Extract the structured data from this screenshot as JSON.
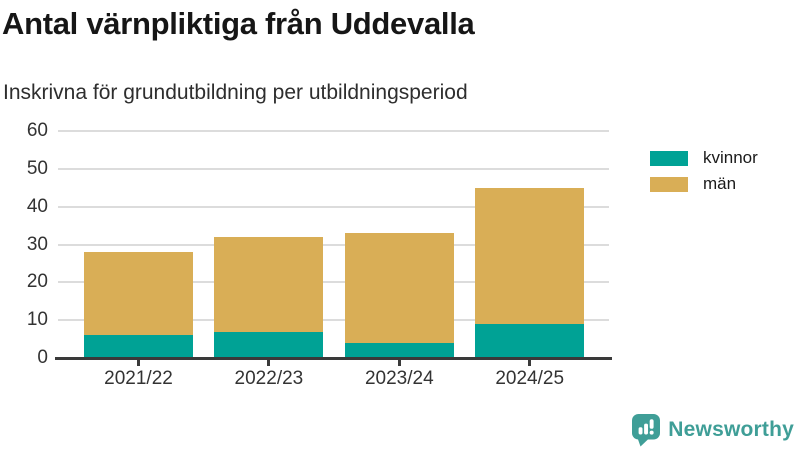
{
  "header": {
    "title": "Antal värnpliktiga från Uddevalla",
    "subtitle": "Inskrivna för grundutbildning per utbildningsperiod"
  },
  "chart_data": {
    "type": "bar",
    "stacked": true,
    "title": "Antal värnpliktiga från Uddevalla",
    "subtitle": "Inskrivna för grundutbildning per utbildningsperiod",
    "categories": [
      "2021/22",
      "2022/23",
      "2023/24",
      "2024/25"
    ],
    "series": [
      {
        "name": "kvinnor",
        "color": "#00A295",
        "values": [
          6,
          7,
          4,
          9
        ]
      },
      {
        "name": "män",
        "color": "#D9AE56",
        "values": [
          22,
          25,
          29,
          36
        ]
      }
    ],
    "totals": [
      28,
      32,
      33,
      45
    ],
    "xlabel": "",
    "ylabel": "",
    "ylim": [
      0,
      60
    ],
    "yticks": [
      0,
      10,
      20,
      30,
      40,
      50,
      60
    ],
    "grid": true,
    "legend_position": "right",
    "axis_color": "#3A3A3A",
    "gridline_color": "#DCDCDC"
  },
  "footer": {
    "brand": "Newsworthy",
    "brand_color": "#3F9E97",
    "logo_icon": "bar-chart-speech-bubble-icon"
  }
}
